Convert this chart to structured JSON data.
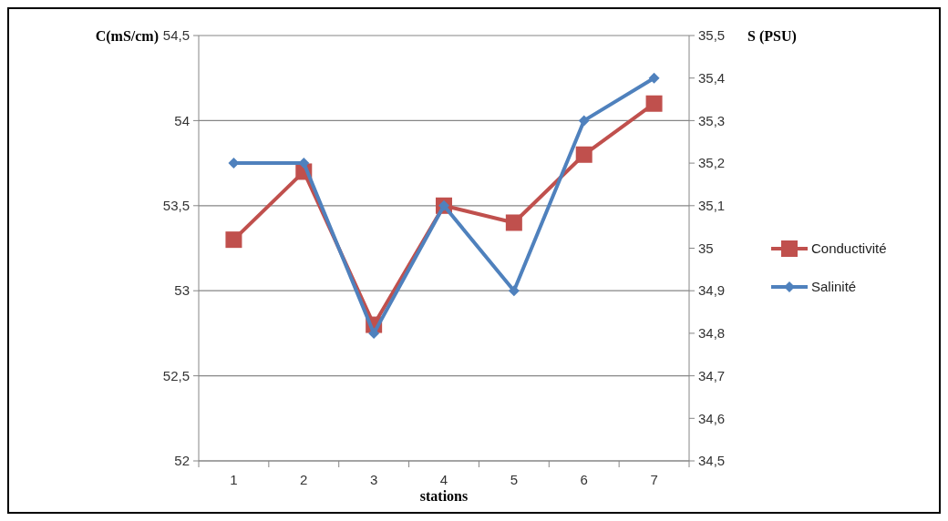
{
  "chart_data": {
    "type": "line",
    "ylabel": "C(mS/cm)",
    "y2label": "S (PSU)",
    "xlabel": "stations",
    "categories": [
      "1",
      "2",
      "3",
      "4",
      "5",
      "6",
      "7"
    ],
    "series": [
      {
        "name": "Conductivité",
        "color": "#c0504d",
        "marker": "square",
        "values": [
          53.3,
          53.7,
          52.8,
          53.5,
          53.4,
          53.8,
          54.1
        ]
      },
      {
        "name": "Salinité",
        "color": "#4f81bd",
        "marker": "diamond",
        "axis": "y2",
        "values": [
          35.2,
          35.2,
          34.8,
          35.1,
          34.9,
          35.3,
          35.4
        ]
      }
    ],
    "ylim": [
      52,
      54.5
    ],
    "yticks": [
      52,
      {
        "value": 52.5,
        "label": "52,5"
      },
      53,
      {
        "value": 53.5,
        "label": "53,5"
      },
      54,
      {
        "value": 54.5,
        "label": "54,5"
      }
    ],
    "y2lim": [
      34.5,
      35.5
    ],
    "y2ticks": [
      {
        "value": 34.5,
        "label": "34,5"
      },
      {
        "value": 34.6,
        "label": "34,6"
      },
      {
        "value": 34.7,
        "label": "34,7"
      },
      {
        "value": 34.8,
        "label": "34,8"
      },
      {
        "value": 34.9,
        "label": "34,9"
      },
      35,
      {
        "value": 35.1,
        "label": "35,1"
      },
      {
        "value": 35.2,
        "label": "35,2"
      },
      {
        "value": 35.3,
        "label": "35,3"
      },
      {
        "value": 35.4,
        "label": "35,4"
      },
      {
        "value": 35.5,
        "label": "35,5"
      }
    ],
    "grid": "y",
    "legend": "right"
  }
}
